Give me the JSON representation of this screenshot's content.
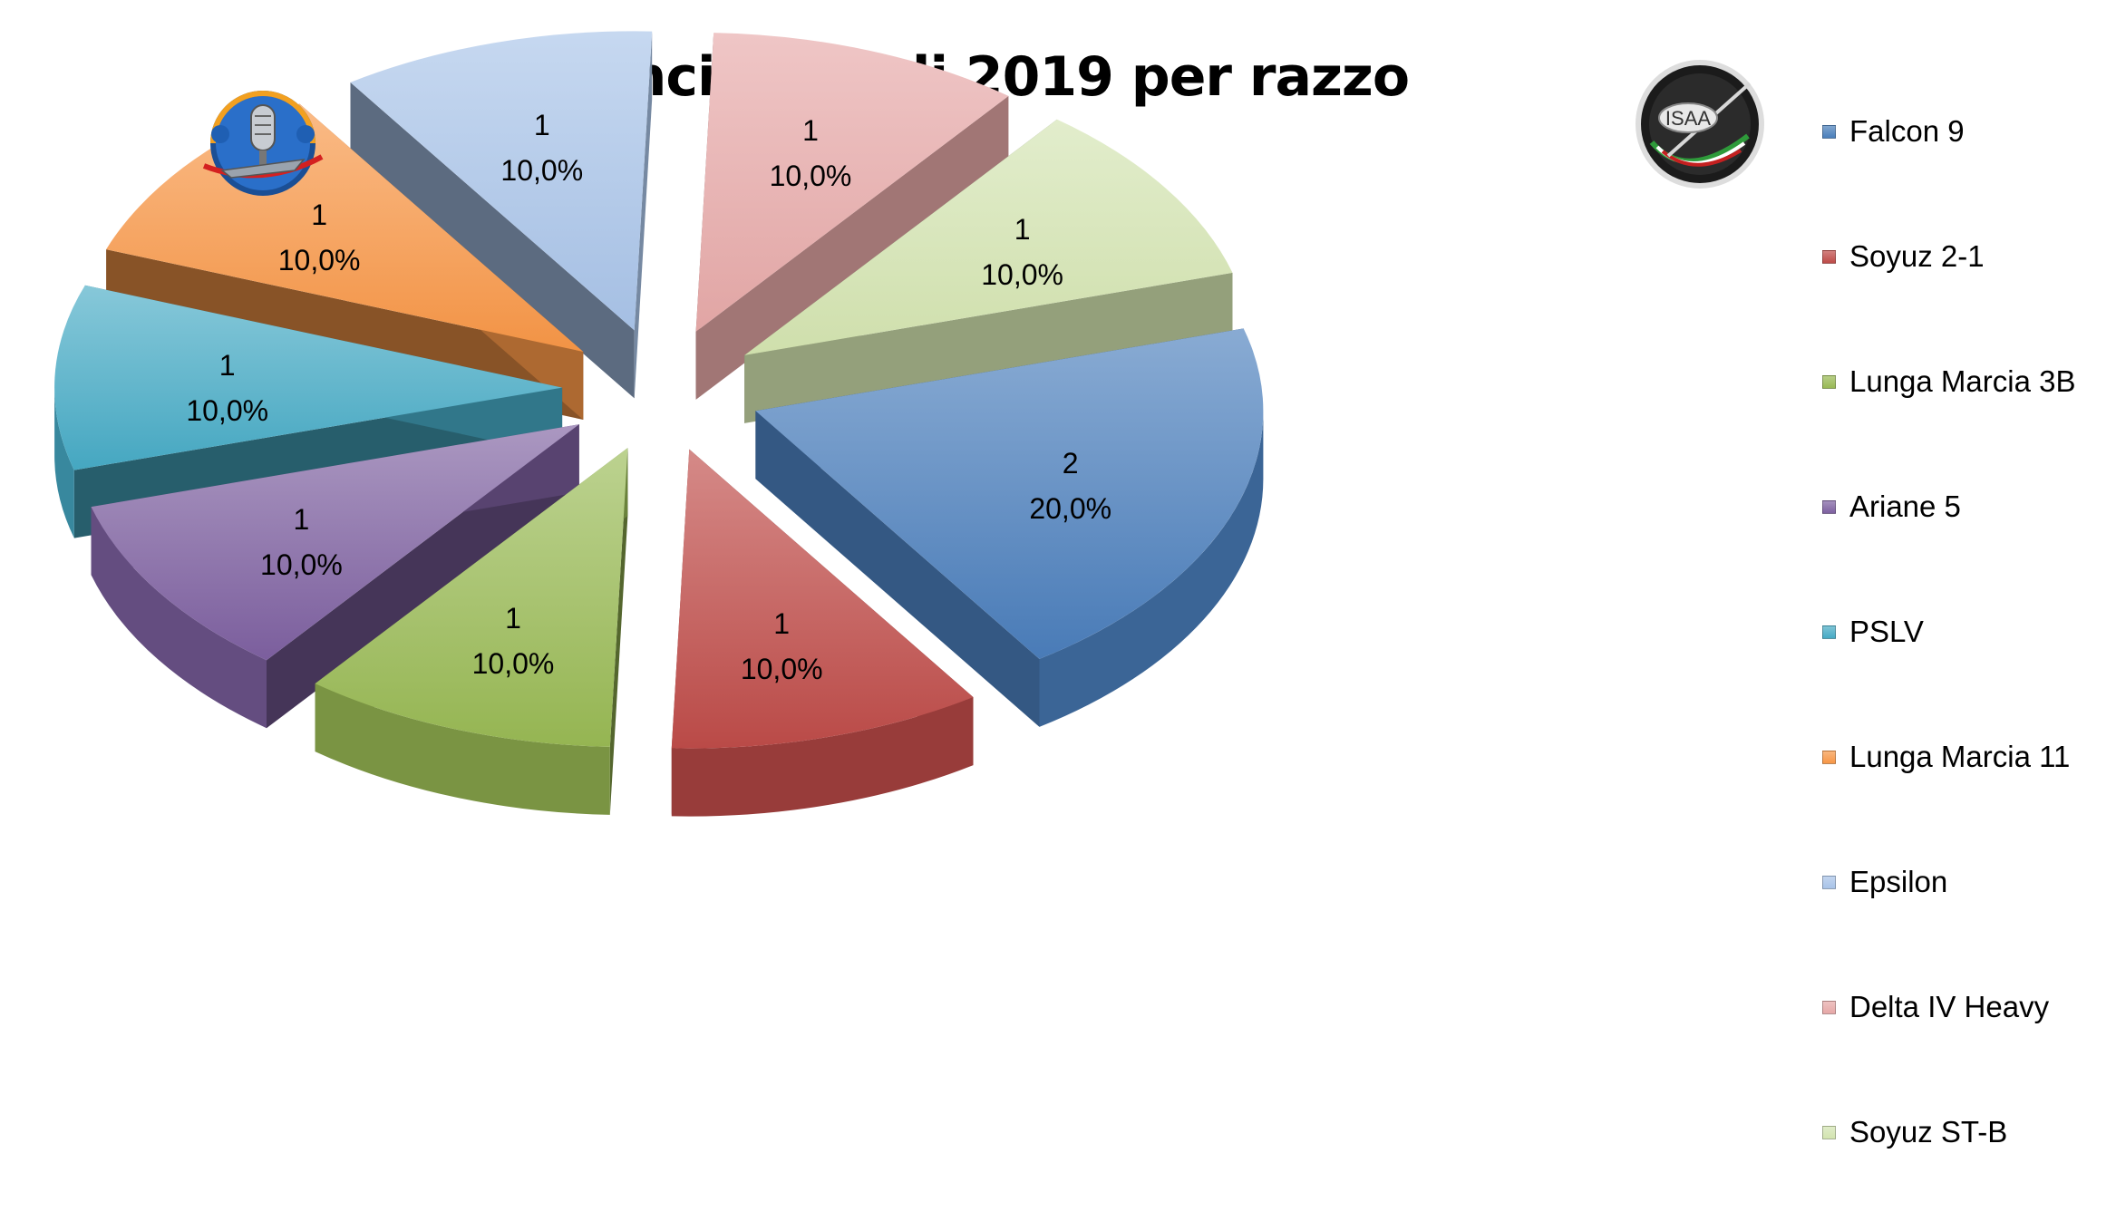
{
  "chart_data": {
    "type": "pie",
    "title": "Lanci orbitali 2019 per razzo",
    "categories": [
      "Falcon 9",
      "Soyuz 2-1",
      "Lunga Marcia 3B",
      "Ariane 5",
      "PSLV",
      "Lunga Marcia 11",
      "Epsilon",
      "Delta IV Heavy",
      "Soyuz ST-B"
    ],
    "values": [
      2,
      1,
      1,
      1,
      1,
      1,
      1,
      1,
      1
    ],
    "value_labels": [
      "2",
      "1",
      "1",
      "1",
      "1",
      "1",
      "1",
      "1",
      "1"
    ],
    "percent_labels": [
      "20,0%",
      "10,0%",
      "10,0%",
      "10,0%",
      "10,0%",
      "10,0%",
      "10,0%",
      "10,0%",
      "10,0%"
    ],
    "colors": [
      "#4a7ebb",
      "#be4b48",
      "#98b954",
      "#7d60a0",
      "#46aac5",
      "#f79646",
      "#a8c3e8",
      "#e6a8a7",
      "#d3e4b0"
    ],
    "legend_position": "right",
    "style": "3d-exploded"
  },
  "logos": {
    "left": "radio-microphone-logo",
    "right": "isaa-logo",
    "right_text": "ISAA"
  }
}
